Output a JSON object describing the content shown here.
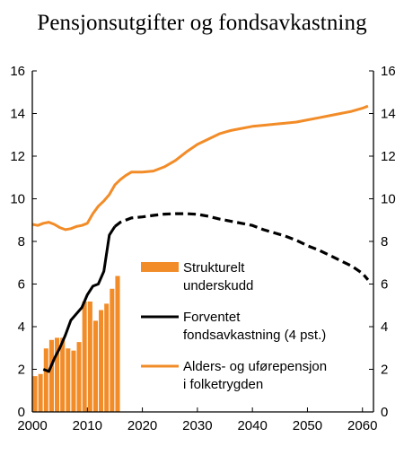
{
  "chart_data": {
    "type": "bar+line",
    "title": "Pensjonsutgifter og fondsavkastning",
    "xlim": [
      2000,
      2062
    ],
    "ylim": [
      0,
      16
    ],
    "x_ticks": [
      2000,
      2010,
      2020,
      2030,
      2040,
      2050,
      2060
    ],
    "y_ticks": [
      0,
      2,
      4,
      6,
      8,
      10,
      12,
      14,
      16
    ],
    "y_axes": "left and right",
    "grid": false,
    "legend_position": "inside, right of bars",
    "colors": {
      "bars": "#F28C28",
      "bar_edge": "#ffffff",
      "pension": "#F28C28",
      "fund": "#000000"
    },
    "series": [
      {
        "name_lines": [
          "Strukturelt",
          "underskudd"
        ],
        "type": "bar",
        "x": [
          2000,
          2001,
          2002,
          2003,
          2004,
          2005,
          2006,
          2007,
          2008,
          2009,
          2010,
          2011,
          2012,
          2013,
          2014,
          2015
        ],
        "values": [
          1.7,
          1.8,
          3.0,
          3.4,
          3.5,
          3.5,
          3.0,
          2.9,
          3.3,
          5.2,
          5.2,
          4.3,
          4.8,
          5.1,
          5.8,
          6.4
        ]
      },
      {
        "name_lines": [
          "Forventet",
          "fondsavkastning (4 pst.)"
        ],
        "type": "line",
        "x": [
          2002,
          2003,
          2004,
          2005,
          2006,
          2007,
          2008,
          2009,
          2010,
          2011,
          2012,
          2013,
          2014,
          2015,
          2016,
          2018,
          2020,
          2022,
          2024,
          2026,
          2028,
          2030,
          2032,
          2034,
          2036,
          2038,
          2040,
          2042,
          2044,
          2046,
          2048,
          2050,
          2052,
          2054,
          2056,
          2058,
          2060,
          2061
        ],
        "values": [
          2.0,
          1.9,
          2.5,
          3.0,
          3.6,
          4.3,
          4.6,
          4.9,
          5.5,
          5.9,
          6.0,
          6.6,
          8.3,
          8.7,
          8.9,
          9.1,
          9.15,
          9.22,
          9.28,
          9.3,
          9.3,
          9.27,
          9.18,
          9.05,
          8.95,
          8.85,
          8.75,
          8.55,
          8.4,
          8.25,
          8.05,
          7.8,
          7.6,
          7.35,
          7.1,
          6.85,
          6.5,
          6.2
        ],
        "actual_until": 2015,
        "projected_style": "dashed"
      },
      {
        "name_lines": [
          "Alders- og uførepensjon",
          "i  folketrygden"
        ],
        "type": "line",
        "x": [
          2000,
          2001,
          2002,
          2003,
          2004,
          2005,
          2006,
          2007,
          2008,
          2009,
          2010,
          2011,
          2012,
          2013,
          2014,
          2015,
          2016,
          2017,
          2018,
          2019,
          2020,
          2022,
          2024,
          2026,
          2028,
          2030,
          2032,
          2034,
          2036,
          2038,
          2040,
          2042,
          2044,
          2046,
          2048,
          2050,
          2052,
          2054,
          2056,
          2058,
          2060,
          2061
        ],
        "values": [
          8.8,
          8.75,
          8.85,
          8.9,
          8.8,
          8.65,
          8.55,
          8.6,
          8.7,
          8.75,
          8.85,
          9.3,
          9.65,
          9.9,
          10.2,
          10.65,
          10.9,
          11.1,
          11.25,
          11.25,
          11.25,
          11.3,
          11.5,
          11.8,
          12.2,
          12.55,
          12.8,
          13.05,
          13.2,
          13.3,
          13.4,
          13.45,
          13.5,
          13.55,
          13.6,
          13.7,
          13.8,
          13.9,
          14.0,
          14.1,
          14.25,
          14.35
        ]
      }
    ]
  }
}
